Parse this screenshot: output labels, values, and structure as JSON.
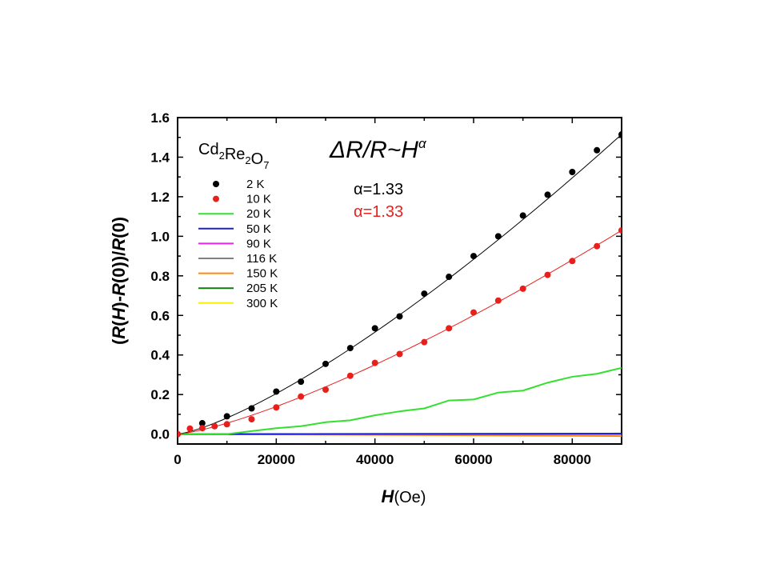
{
  "chart_data": {
    "type": "line",
    "xlabel_var": "H",
    "xlabel_unit": "(Oe)",
    "ylabel": "(R(H)-R(0))/R(0)",
    "ylabel_parts": [
      "(",
      "R",
      "(",
      "H",
      ")",
      "-",
      "R",
      "(0))/",
      "R",
      "(0)"
    ],
    "xlim": [
      0,
      90000
    ],
    "ylim": [
      -0.05,
      1.6
    ],
    "xticks": [
      0,
      20000,
      40000,
      60000,
      80000
    ],
    "yticks": [
      0.0,
      0.2,
      0.4,
      0.6,
      0.8,
      1.0,
      1.2,
      1.4,
      1.6
    ],
    "compound": {
      "base": [
        "Cd",
        "Re",
        "O"
      ],
      "subs": [
        "2",
        "2",
        "7"
      ]
    },
    "formula": {
      "text": "ΔR/R~H",
      "sup": "α"
    },
    "fits": [
      {
        "label": "α=1.33",
        "color": "#000000"
      },
      {
        "label": "α=1.33",
        "color": "#e8201c"
      }
    ],
    "series": [
      {
        "name": "2 K",
        "style": "dots",
        "color": "#000000",
        "x": [
          0,
          5000,
          10000,
          15000,
          20000,
          25000,
          30000,
          35000,
          40000,
          45000,
          50000,
          55000,
          60000,
          65000,
          70000,
          75000,
          80000,
          85000,
          90000
        ],
        "y": [
          0,
          0.055,
          0.09,
          0.13,
          0.215,
          0.265,
          0.355,
          0.435,
          0.535,
          0.595,
          0.71,
          0.795,
          0.9,
          1.0,
          1.105,
          1.21,
          1.325,
          1.435,
          1.515
        ]
      },
      {
        "name": "10 K",
        "style": "dots",
        "color": "#e8201c",
        "x": [
          0,
          2500,
          5000,
          7500,
          10000,
          15000,
          20000,
          25000,
          30000,
          35000,
          40000,
          45000,
          50000,
          55000,
          60000,
          65000,
          70000,
          75000,
          80000,
          85000,
          90000
        ],
        "y": [
          0,
          0.028,
          0.03,
          0.04,
          0.05,
          0.075,
          0.135,
          0.19,
          0.225,
          0.295,
          0.36,
          0.405,
          0.465,
          0.535,
          0.615,
          0.675,
          0.735,
          0.805,
          0.875,
          0.95,
          1.03
        ]
      },
      {
        "name": "20 K",
        "style": "line",
        "color": "#33e02e",
        "x": [
          0,
          10000,
          15000,
          20000,
          25000,
          30000,
          35000,
          40000,
          45000,
          50000,
          55000,
          60000,
          65000,
          70000,
          75000,
          80000,
          85000,
          90000
        ],
        "y": [
          0,
          0.0,
          0.015,
          0.03,
          0.04,
          0.06,
          0.07,
          0.095,
          0.115,
          0.13,
          0.17,
          0.175,
          0.21,
          0.22,
          0.26,
          0.29,
          0.305,
          0.335
        ]
      },
      {
        "name": "50 K",
        "style": "line",
        "color": "#1d1ddc",
        "x": [
          0,
          90000
        ],
        "y": [
          0,
          0.002
        ]
      },
      {
        "name": "90 K",
        "style": "line",
        "color": "#ee22ee",
        "x": [
          0,
          90000
        ],
        "y": [
          0,
          0.002
        ]
      },
      {
        "name": "116 K",
        "style": "line",
        "color": "#808080",
        "x": [
          0,
          70000,
          90000
        ],
        "y": [
          0,
          0.0,
          0.0
        ]
      },
      {
        "name": "150 K",
        "style": "line",
        "color": "#ff8a12",
        "x": [
          0,
          60000,
          90000
        ],
        "y": [
          0,
          -0.006,
          -0.01
        ]
      },
      {
        "name": "205 K",
        "style": "line",
        "color": "#117a11",
        "x": [
          0,
          70000,
          90000
        ],
        "y": [
          0,
          0.0,
          0.003
        ]
      },
      {
        "name": "300 K",
        "style": "line",
        "color": "#f6f000",
        "x": [
          0,
          90000
        ],
        "y": [
          0,
          0.0
        ]
      }
    ]
  }
}
